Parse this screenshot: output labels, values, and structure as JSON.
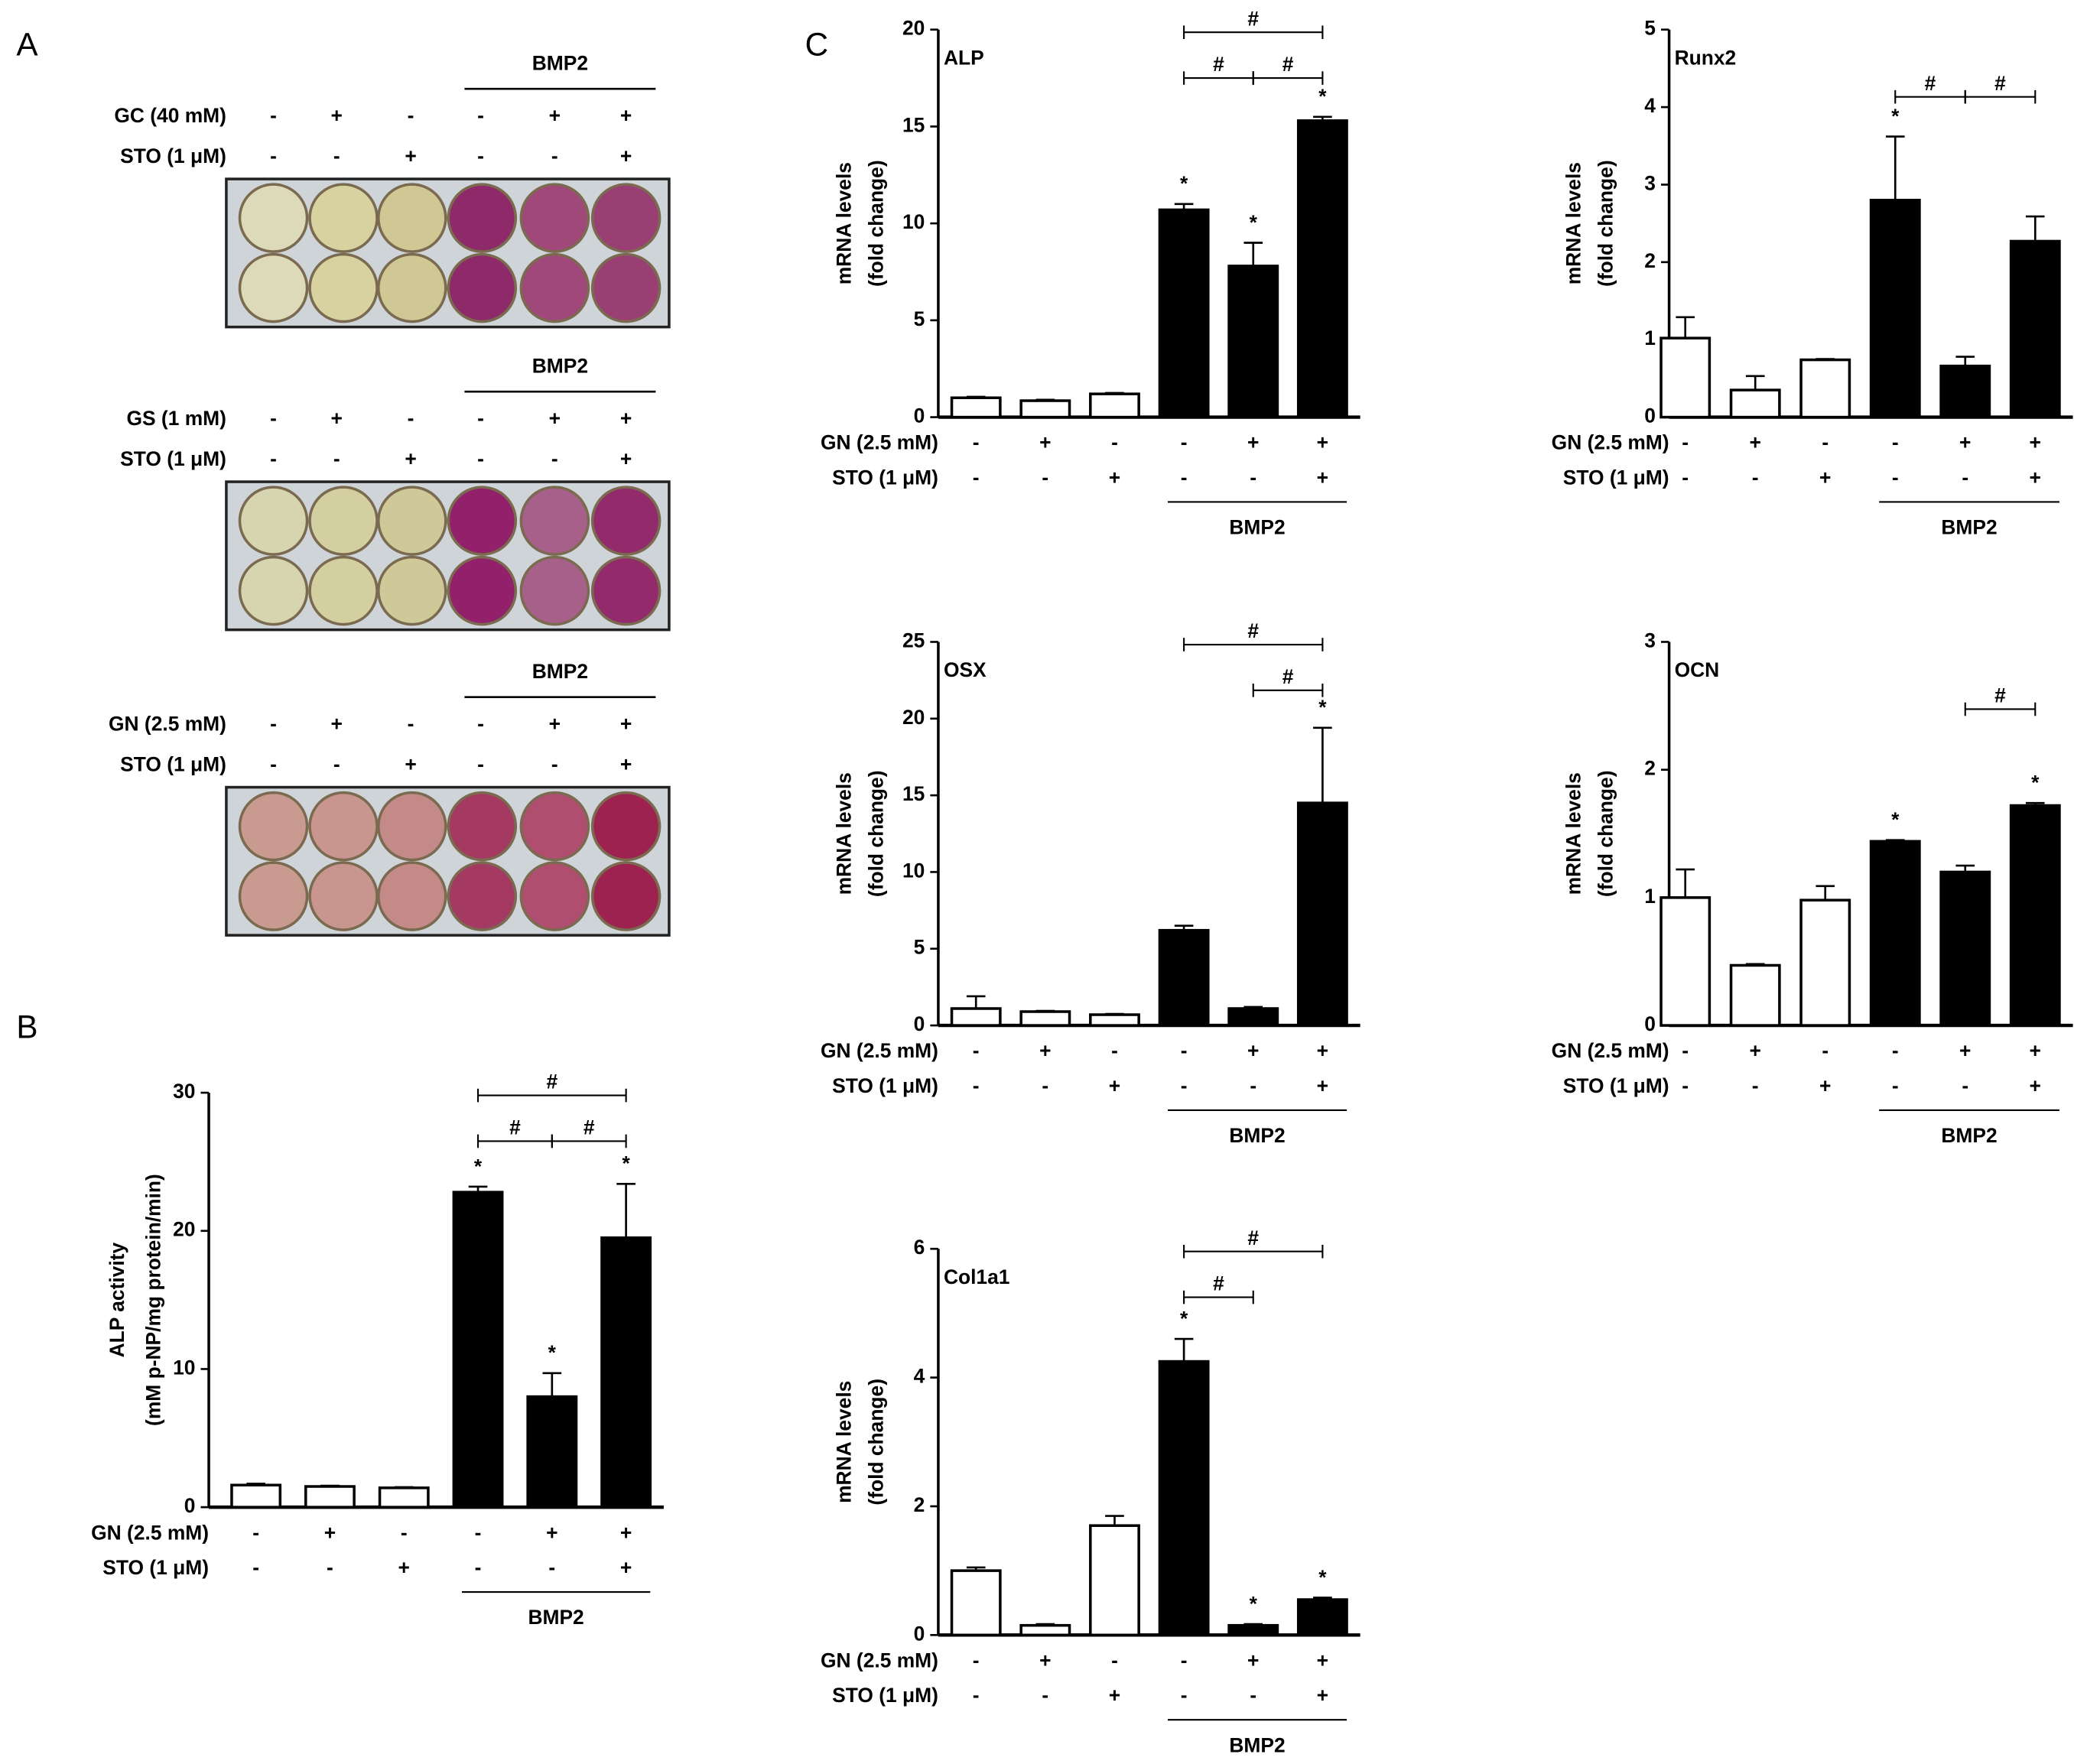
{
  "panel_a": {
    "label": "A",
    "plates": [
      {
        "group_label": "BMP2",
        "conditions": [
          {
            "label": "GC (40 mM)",
            "marks": [
              "-",
              "+",
              "-",
              "-",
              "+",
              "+"
            ]
          },
          {
            "label": "STO (1 μM)",
            "marks": [
              "-",
              "-",
              "+",
              "-",
              "-",
              "+"
            ]
          }
        ]
      },
      {
        "group_label": "BMP2",
        "conditions": [
          {
            "label": "GS (1 mM)",
            "marks": [
              "-",
              "+",
              "-",
              "-",
              "+",
              "+"
            ]
          },
          {
            "label": "STO (1 μM)",
            "marks": [
              "-",
              "-",
              "+",
              "-",
              "-",
              "+"
            ]
          }
        ]
      },
      {
        "group_label": "BMP2",
        "conditions": [
          {
            "label": "GN (2.5 mM)",
            "marks": [
              "-",
              "+",
              "-",
              "-",
              "+",
              "+"
            ]
          },
          {
            "label": "STO (1 μM)",
            "marks": [
              "-",
              "-",
              "+",
              "-",
              "-",
              "+"
            ]
          }
        ]
      }
    ]
  },
  "chart_data": [
    {
      "type": "bar",
      "panel_label": "B",
      "ylabel": [
        "ALP activity",
        "(mM p-NP/mg protein/min)"
      ],
      "values": [
        1.6,
        1.5,
        1.4,
        22.8,
        8.0,
        19.5
      ],
      "errors": [
        0.1,
        0.05,
        0.05,
        0.4,
        1.7,
        3.9
      ],
      "colors": [
        "#ffffff",
        "#ffffff",
        "#ffffff",
        "#000000",
        "#000000",
        "#000000"
      ],
      "ylim": [
        0,
        30
      ],
      "yticks": [
        0,
        10,
        20,
        30
      ],
      "stars": [
        {
          "label": "*",
          "bar": 3
        },
        {
          "label": "*",
          "bar": 4
        },
        {
          "label": "*",
          "bar": 5
        }
      ],
      "brackets": [
        {
          "label": "#",
          "from": 3,
          "to": 5
        },
        {
          "label": "#",
          "from": 3,
          "to": 4
        },
        {
          "label": "#",
          "from": 4,
          "to": 5
        }
      ],
      "conditions": [
        {
          "label": "GN (2.5 mM)",
          "marks": [
            "-",
            "+",
            "-",
            "-",
            "+",
            "+"
          ]
        },
        {
          "label": "STO (1 μM)",
          "marks": [
            "-",
            "-",
            "+",
            "-",
            "-",
            "+"
          ]
        }
      ],
      "group_label": "BMP2"
    },
    {
      "type": "bar",
      "panel_label": "C",
      "title": "ALP",
      "ylabel": [
        "mRNA levels",
        "(fold change)"
      ],
      "values": [
        1.0,
        0.85,
        1.2,
        10.7,
        7.8,
        15.3
      ],
      "errors": [
        0.05,
        0.05,
        0.05,
        0.3,
        1.2,
        0.2
      ],
      "colors": [
        "#ffffff",
        "#ffffff",
        "#ffffff",
        "#000000",
        "#000000",
        "#000000"
      ],
      "ylim": [
        0,
        20
      ],
      "yticks": [
        0,
        5,
        10,
        15,
        20
      ],
      "stars": [
        {
          "label": "*",
          "bar": 3
        },
        {
          "label": "*",
          "bar": 4
        },
        {
          "label": "*",
          "bar": 5
        }
      ],
      "brackets": [
        {
          "label": "#",
          "from": 3,
          "to": 5
        },
        {
          "label": "#",
          "from": 3,
          "to": 4
        },
        {
          "label": "#",
          "from": 4,
          "to": 5
        }
      ],
      "conditions": [
        {
          "label": "GN (2.5 mM)",
          "marks": [
            "-",
            "+",
            "-",
            "-",
            "+",
            "+"
          ]
        },
        {
          "label": "STO (1 μM)",
          "marks": [
            "-",
            "-",
            "+",
            "-",
            "-",
            "+"
          ]
        }
      ],
      "group_label": "BMP2"
    },
    {
      "type": "bar",
      "title": "Runx2",
      "ylabel": [
        "mRNA levels",
        "(fold change)"
      ],
      "values": [
        1.02,
        0.35,
        0.74,
        2.8,
        0.66,
        2.27
      ],
      "errors": [
        0.27,
        0.18,
        0.01,
        0.82,
        0.12,
        0.32
      ],
      "colors": [
        "#ffffff",
        "#ffffff",
        "#ffffff",
        "#000000",
        "#000000",
        "#000000"
      ],
      "ylim": [
        0,
        5
      ],
      "yticks": [
        0,
        1,
        2,
        3,
        4,
        5
      ],
      "stars": [
        {
          "label": "*",
          "bar": 3
        }
      ],
      "brackets": [
        {
          "label": "#",
          "from": 3,
          "to": 4
        },
        {
          "label": "#",
          "from": 4,
          "to": 5
        }
      ],
      "conditions": [
        {
          "label": "GN (2.5 mM)",
          "marks": [
            "-",
            "+",
            "-",
            "-",
            "+",
            "+"
          ]
        },
        {
          "label": "STO (1 μM)",
          "marks": [
            "-",
            "-",
            "+",
            "-",
            "-",
            "+"
          ]
        }
      ],
      "group_label": "BMP2"
    },
    {
      "type": "bar",
      "title": "OSX",
      "ylabel": [
        "mRNA levels",
        "(fold change)"
      ],
      "values": [
        1.1,
        0.9,
        0.7,
        6.2,
        1.1,
        14.5
      ],
      "errors": [
        0.8,
        0.05,
        0.05,
        0.3,
        0.1,
        4.9
      ],
      "colors": [
        "#ffffff",
        "#ffffff",
        "#ffffff",
        "#000000",
        "#000000",
        "#000000"
      ],
      "ylim": [
        0,
        25
      ],
      "yticks": [
        0,
        5,
        10,
        15,
        20,
        25
      ],
      "stars": [
        {
          "label": "*",
          "bar": 5
        }
      ],
      "brackets": [
        {
          "label": "#",
          "from": 3,
          "to": 5
        },
        {
          "label": "#",
          "from": 4,
          "to": 5
        }
      ],
      "conditions": [
        {
          "label": "GN (2.5 mM)",
          "marks": [
            "-",
            "+",
            "-",
            "-",
            "+",
            "+"
          ]
        },
        {
          "label": "STO (1 μM)",
          "marks": [
            "-",
            "-",
            "+",
            "-",
            "-",
            "+"
          ]
        }
      ],
      "group_label": "BMP2"
    },
    {
      "type": "bar",
      "title": "OCN",
      "ylabel": [
        "mRNA levels",
        "(fold change)"
      ],
      "values": [
        1.0,
        0.47,
        0.98,
        1.44,
        1.2,
        1.72
      ],
      "errors": [
        0.22,
        0.01,
        0.11,
        0.01,
        0.05,
        0.02
      ],
      "colors": [
        "#ffffff",
        "#ffffff",
        "#ffffff",
        "#000000",
        "#000000",
        "#000000"
      ],
      "ylim": [
        0,
        3
      ],
      "yticks": [
        0,
        1,
        2,
        3
      ],
      "stars": [
        {
          "label": "*",
          "bar": 3
        },
        {
          "label": "*",
          "bar": 5
        }
      ],
      "brackets": [
        {
          "label": "#",
          "from": 4,
          "to": 5
        }
      ],
      "conditions": [
        {
          "label": "GN (2.5 mM)",
          "marks": [
            "-",
            "+",
            "-",
            "-",
            "+",
            "+"
          ]
        },
        {
          "label": "STO (1 μM)",
          "marks": [
            "-",
            "-",
            "+",
            "-",
            "-",
            "+"
          ]
        }
      ],
      "group_label": "BMP2"
    },
    {
      "type": "bar",
      "title": "Col1a1",
      "ylabel": [
        "mRNA levels",
        "(fold change)"
      ],
      "values": [
        1.0,
        0.15,
        1.7,
        4.25,
        0.15,
        0.55
      ],
      "errors": [
        0.05,
        0.02,
        0.15,
        0.35,
        0.02,
        0.03
      ],
      "colors": [
        "#ffffff",
        "#ffffff",
        "#ffffff",
        "#000000",
        "#000000",
        "#000000"
      ],
      "ylim": [
        0,
        6
      ],
      "yticks": [
        0,
        2,
        4,
        6
      ],
      "stars": [
        {
          "label": "*",
          "bar": 3
        },
        {
          "label": "*",
          "bar": 4
        },
        {
          "label": "*",
          "bar": 5
        }
      ],
      "brackets": [
        {
          "label": "#",
          "from": 3,
          "to": 5
        },
        {
          "label": "#",
          "from": 3,
          "to": 4
        }
      ],
      "conditions": [
        {
          "label": "GN (2.5 mM)",
          "marks": [
            "-",
            "+",
            "-",
            "-",
            "+",
            "+"
          ]
        },
        {
          "label": "STO (1 μM)",
          "marks": [
            "-",
            "-",
            "+",
            "-",
            "-",
            "+"
          ]
        }
      ],
      "group_label": "BMP2"
    }
  ]
}
